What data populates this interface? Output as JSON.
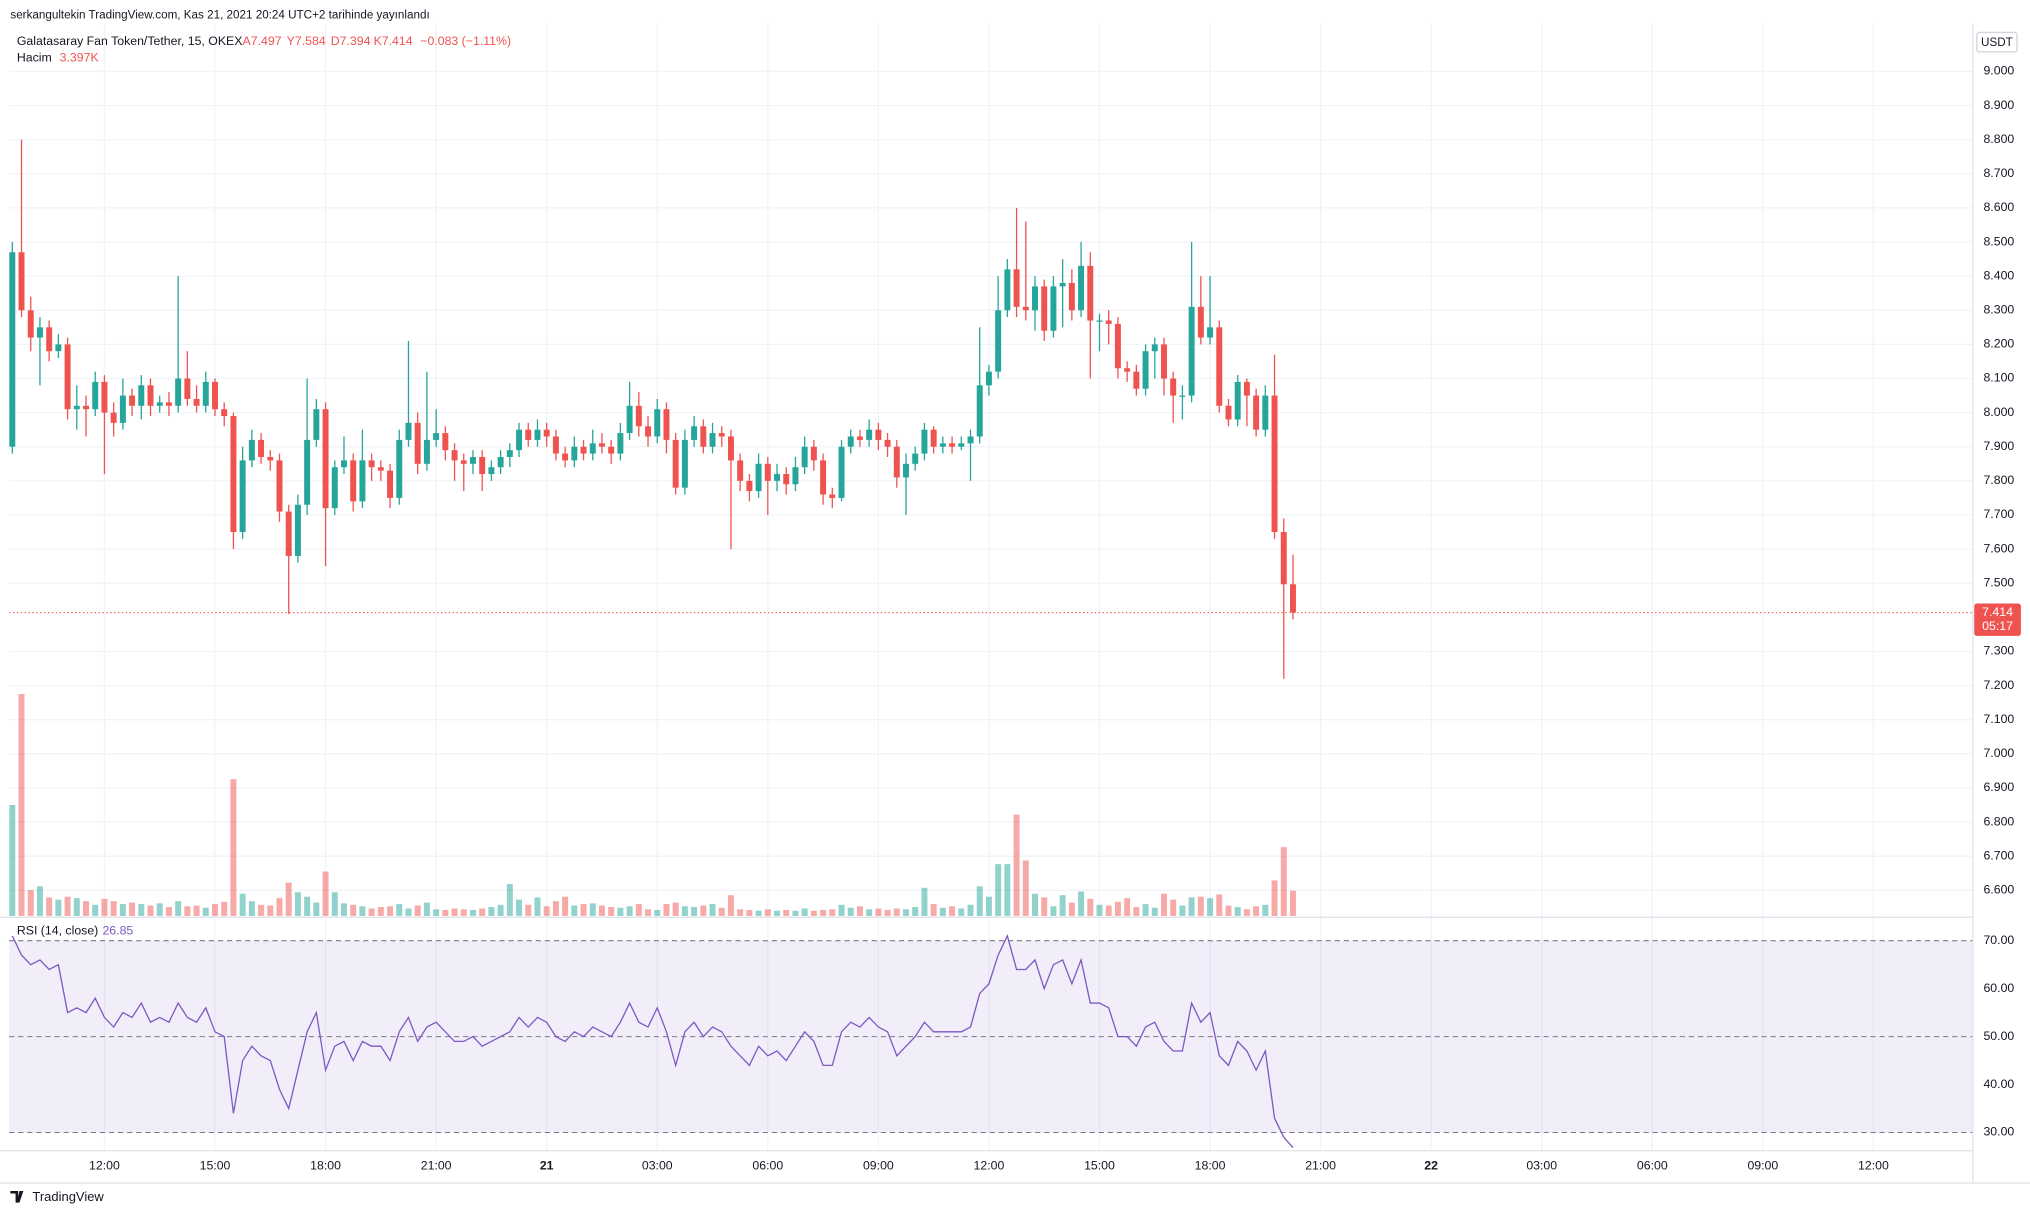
{
  "chart_data": {
    "type": "candlestick",
    "published": "serkangultekin TradingView.com, Kas 21, 2021 20:24 UTC+2 tarihinde yayınlandı",
    "legend": {
      "symbol": "Galatasaray Fan Token/Tether, 15, OKEX",
      "open": "A7.497",
      "high": "Y7.584",
      "low": "D7.394",
      "close": "K7.414",
      "change": "−0.083 (−1.11%)"
    },
    "volume_title": "Hacim",
    "volume_value": "3.397K",
    "rsi_title": "RSI (14, close)",
    "rsi_value": "26.85",
    "currency": "USDT",
    "brand": "TradingView",
    "up_color": "#26a69a",
    "down_color": "#ef5350",
    "rsi_color": "#7e57c2",
    "grid": true,
    "candles": [
      [
        7.9,
        8.5,
        7.88,
        8.47
      ],
      [
        8.47,
        8.8,
        8.28,
        8.3
      ],
      [
        8.3,
        8.34,
        8.18,
        8.22
      ],
      [
        8.22,
        8.28,
        8.08,
        8.25
      ],
      [
        8.25,
        8.27,
        8.15,
        8.18
      ],
      [
        8.18,
        8.23,
        8.16,
        8.2
      ],
      [
        8.2,
        8.22,
        7.98,
        8.01
      ],
      [
        8.01,
        8.08,
        7.95,
        8.02
      ],
      [
        8.02,
        8.05,
        7.93,
        8.01
      ],
      [
        8.01,
        8.12,
        7.99,
        8.09
      ],
      [
        8.09,
        8.11,
        7.82,
        8.0
      ],
      [
        8.0,
        8.03,
        7.93,
        7.97
      ],
      [
        7.97,
        8.1,
        7.95,
        8.05
      ],
      [
        8.05,
        8.07,
        7.99,
        8.02
      ],
      [
        8.02,
        8.11,
        7.98,
        8.08
      ],
      [
        8.08,
        8.1,
        7.99,
        8.02
      ],
      [
        8.02,
        8.05,
        8.0,
        8.03
      ],
      [
        8.03,
        8.06,
        7.99,
        8.02
      ],
      [
        8.02,
        8.4,
        8.0,
        8.1
      ],
      [
        8.1,
        8.18,
        8.02,
        8.04
      ],
      [
        8.04,
        8.08,
        8.0,
        8.02
      ],
      [
        8.02,
        8.12,
        8.0,
        8.09
      ],
      [
        8.09,
        8.1,
        7.99,
        8.01
      ],
      [
        8.01,
        8.03,
        7.96,
        7.99
      ],
      [
        7.99,
        8.0,
        7.6,
        7.65
      ],
      [
        7.65,
        7.9,
        7.63,
        7.86
      ],
      [
        7.86,
        7.95,
        7.84,
        7.92
      ],
      [
        7.92,
        7.94,
        7.85,
        7.87
      ],
      [
        7.87,
        7.89,
        7.83,
        7.86
      ],
      [
        7.86,
        7.88,
        7.68,
        7.71
      ],
      [
        7.71,
        7.73,
        7.41,
        7.58
      ],
      [
        7.58,
        7.76,
        7.56,
        7.73
      ],
      [
        7.73,
        8.1,
        7.7,
        7.92
      ],
      [
        7.92,
        8.04,
        7.9,
        8.01
      ],
      [
        8.01,
        8.03,
        7.55,
        7.72
      ],
      [
        7.72,
        7.86,
        7.7,
        7.84
      ],
      [
        7.84,
        7.93,
        7.82,
        7.86
      ],
      [
        7.86,
        7.88,
        7.71,
        7.74
      ],
      [
        7.74,
        7.95,
        7.72,
        7.86
      ],
      [
        7.86,
        7.88,
        7.8,
        7.84
      ],
      [
        7.84,
        7.86,
        7.8,
        7.83
      ],
      [
        7.83,
        7.85,
        7.72,
        7.75
      ],
      [
        7.75,
        7.95,
        7.73,
        7.92
      ],
      [
        7.92,
        8.21,
        7.9,
        7.97
      ],
      [
        7.97,
        8.0,
        7.82,
        7.85
      ],
      [
        7.85,
        8.12,
        7.83,
        7.92
      ],
      [
        7.92,
        8.01,
        7.9,
        7.94
      ],
      [
        7.94,
        7.96,
        7.86,
        7.89
      ],
      [
        7.89,
        7.91,
        7.8,
        7.86
      ],
      [
        7.86,
        7.88,
        7.77,
        7.85
      ],
      [
        7.85,
        7.89,
        7.82,
        7.87
      ],
      [
        7.87,
        7.89,
        7.77,
        7.82
      ],
      [
        7.82,
        7.86,
        7.8,
        7.84
      ],
      [
        7.84,
        7.89,
        7.82,
        7.87
      ],
      [
        7.87,
        7.91,
        7.84,
        7.89
      ],
      [
        7.89,
        7.97,
        7.87,
        7.95
      ],
      [
        7.95,
        7.97,
        7.9,
        7.92
      ],
      [
        7.92,
        7.98,
        7.9,
        7.95
      ],
      [
        7.95,
        7.97,
        7.9,
        7.93
      ],
      [
        7.93,
        7.95,
        7.86,
        7.88
      ],
      [
        7.88,
        7.9,
        7.84,
        7.86
      ],
      [
        7.86,
        7.93,
        7.84,
        7.9
      ],
      [
        7.9,
        7.92,
        7.86,
        7.88
      ],
      [
        7.88,
        7.95,
        7.86,
        7.91
      ],
      [
        7.91,
        7.94,
        7.88,
        7.9
      ],
      [
        7.9,
        7.92,
        7.85,
        7.88
      ],
      [
        7.88,
        7.97,
        7.86,
        7.94
      ],
      [
        7.94,
        8.09,
        7.92,
        8.02
      ],
      [
        8.02,
        8.06,
        7.93,
        7.96
      ],
      [
        7.96,
        7.99,
        7.9,
        7.93
      ],
      [
        7.93,
        8.04,
        7.91,
        8.01
      ],
      [
        8.01,
        8.03,
        7.88,
        7.92
      ],
      [
        7.92,
        7.94,
        7.76,
        7.78
      ],
      [
        7.78,
        7.95,
        7.76,
        7.92
      ],
      [
        7.92,
        7.99,
        7.9,
        7.96
      ],
      [
        7.96,
        7.98,
        7.88,
        7.9
      ],
      [
        7.9,
        7.97,
        7.88,
        7.94
      ],
      [
        7.94,
        7.96,
        7.9,
        7.93
      ],
      [
        7.93,
        7.95,
        7.6,
        7.86
      ],
      [
        7.86,
        7.88,
        7.77,
        7.8
      ],
      [
        7.8,
        7.82,
        7.74,
        7.77
      ],
      [
        7.77,
        7.88,
        7.75,
        7.85
      ],
      [
        7.85,
        7.87,
        7.7,
        7.8
      ],
      [
        7.8,
        7.85,
        7.77,
        7.82
      ],
      [
        7.82,
        7.84,
        7.76,
        7.79
      ],
      [
        7.79,
        7.87,
        7.77,
        7.84
      ],
      [
        7.84,
        7.93,
        7.82,
        7.9
      ],
      [
        7.9,
        7.92,
        7.83,
        7.86
      ],
      [
        7.86,
        7.88,
        7.73,
        7.76
      ],
      [
        7.76,
        7.78,
        7.72,
        7.75
      ],
      [
        7.75,
        7.92,
        7.74,
        7.9
      ],
      [
        7.9,
        7.95,
        7.88,
        7.93
      ],
      [
        7.93,
        7.95,
        7.9,
        7.92
      ],
      [
        7.92,
        7.98,
        7.9,
        7.95
      ],
      [
        7.95,
        7.97,
        7.89,
        7.92
      ],
      [
        7.92,
        7.94,
        7.87,
        7.9
      ],
      [
        7.9,
        7.92,
        7.78,
        7.81
      ],
      [
        7.81,
        7.88,
        7.7,
        7.85
      ],
      [
        7.85,
        7.9,
        7.83,
        7.88
      ],
      [
        7.88,
        7.97,
        7.86,
        7.95
      ],
      [
        7.95,
        7.96,
        7.88,
        7.9
      ],
      [
        7.9,
        7.93,
        7.88,
        7.91
      ],
      [
        7.91,
        7.93,
        7.88,
        7.9
      ],
      [
        7.9,
        7.93,
        7.89,
        7.91
      ],
      [
        7.91,
        7.95,
        7.8,
        7.93
      ],
      [
        7.93,
        8.25,
        7.91,
        8.08
      ],
      [
        8.08,
        8.14,
        8.05,
        8.12
      ],
      [
        8.12,
        8.4,
        8.1,
        8.3
      ],
      [
        8.3,
        8.45,
        8.28,
        8.42
      ],
      [
        8.42,
        8.6,
        8.28,
        8.31
      ],
      [
        8.31,
        8.56,
        8.27,
        8.3
      ],
      [
        8.3,
        8.4,
        8.24,
        8.37
      ],
      [
        8.37,
        8.39,
        8.21,
        8.24
      ],
      [
        8.24,
        8.4,
        8.22,
        8.37
      ],
      [
        8.37,
        8.45,
        8.25,
        8.38
      ],
      [
        8.38,
        8.42,
        8.27,
        8.3
      ],
      [
        8.3,
        8.5,
        8.28,
        8.43
      ],
      [
        8.43,
        8.47,
        8.1,
        8.27
      ],
      [
        8.27,
        8.29,
        8.18,
        8.27
      ],
      [
        8.27,
        8.3,
        8.2,
        8.26
      ],
      [
        8.26,
        8.28,
        8.1,
        8.13
      ],
      [
        8.13,
        8.15,
        8.09,
        8.12
      ],
      [
        8.12,
        8.14,
        8.05,
        8.07
      ],
      [
        8.07,
        8.2,
        8.05,
        8.18
      ],
      [
        8.18,
        8.22,
        8.1,
        8.2
      ],
      [
        8.2,
        8.22,
        8.05,
        8.1
      ],
      [
        8.1,
        8.12,
        7.97,
        8.05
      ],
      [
        8.05,
        8.08,
        7.98,
        8.05
      ],
      [
        8.05,
        8.5,
        8.03,
        8.31
      ],
      [
        8.31,
        8.4,
        8.2,
        8.22
      ],
      [
        8.22,
        8.4,
        8.2,
        8.25
      ],
      [
        8.25,
        8.27,
        8.0,
        8.02
      ],
      [
        8.02,
        8.04,
        7.96,
        7.98
      ],
      [
        7.98,
        8.11,
        7.96,
        8.09
      ],
      [
        8.09,
        8.1,
        7.96,
        8.05
      ],
      [
        8.05,
        8.07,
        7.93,
        7.95
      ],
      [
        7.95,
        8.08,
        7.93,
        8.05
      ],
      [
        8.05,
        8.17,
        7.63,
        7.65
      ],
      [
        7.65,
        7.69,
        7.22,
        7.497
      ],
      [
        7.497,
        7.584,
        7.394,
        7.414
      ]
    ],
    "volume": [
      15,
      30,
      3.5,
      4.0,
      2.5,
      2.2,
      2.6,
      2.4,
      2.0,
      1.5,
      2.3,
      2.0,
      1.6,
      1.8,
      1.6,
      1.4,
      1.7,
      1.2,
      2.0,
      1.3,
      1.4,
      1.1,
      1.6,
      1.9,
      18.5,
      3.0,
      2.0,
      1.5,
      1.4,
      2.4,
      4.5,
      3.2,
      2.6,
      1.8,
      6.0,
      3.2,
      1.7,
      1.5,
      1.3,
      1.0,
      1.2,
      1.3,
      1.6,
      1.0,
      1.4,
      1.8,
      0.9,
      0.8,
      1.0,
      0.9,
      0.8,
      1.0,
      1.2,
      1.5,
      4.3,
      2.2,
      1.5,
      2.5,
      1.3,
      2.0,
      2.6,
      1.4,
      1.6,
      1.7,
      1.4,
      1.2,
      1.1,
      1.3,
      1.6,
      0.9,
      0.8,
      1.6,
      1.8,
      1.3,
      1.2,
      1.4,
      1.6,
      1.1,
      2.8,
      0.9,
      0.8,
      0.7,
      0.9,
      0.7,
      0.8,
      0.7,
      1.0,
      0.7,
      0.8,
      0.9,
      1.5,
      1.1,
      1.3,
      0.9,
      1.0,
      0.8,
      1.0,
      0.9,
      1.2,
      3.8,
      1.6,
      1.1,
      1.3,
      1.0,
      1.5,
      4.0,
      2.6,
      7.0,
      7.0,
      13.7,
      7.5,
      3.0,
      2.5,
      1.3,
      2.8,
      1.8,
      3.3,
      2.3,
      1.5,
      1.4,
      1.9,
      2.4,
      1.2,
      1.6,
      1.1,
      3.0,
      2.2,
      1.4,
      2.5,
      2.6,
      2.4,
      2.9,
      1.4,
      1.2,
      0.9,
      1.3,
      1.5,
      4.8,
      9.3,
      3.397
    ],
    "rsi": [
      71,
      67,
      65,
      66,
      64,
      65,
      55,
      56,
      55,
      58,
      54,
      52,
      55,
      54,
      57,
      53,
      54,
      53,
      57,
      54,
      53,
      56,
      51,
      50,
      34,
      45,
      48,
      46,
      45,
      39,
      35,
      43,
      51,
      55,
      43,
      48,
      49,
      45,
      49,
      48,
      48,
      45,
      51,
      54,
      49,
      52,
      53,
      51,
      49,
      49,
      50,
      48,
      49,
      50,
      51,
      54,
      52,
      54,
      53,
      50,
      49,
      51,
      50,
      52,
      51,
      50,
      53,
      57,
      53,
      52,
      56,
      51,
      44,
      51,
      53,
      50,
      52,
      51,
      48,
      46,
      44,
      48,
      46,
      47,
      45,
      48,
      51,
      49,
      44,
      44,
      51,
      53,
      52,
      54,
      52,
      51,
      46,
      48,
      50,
      53,
      51,
      51,
      51,
      51,
      52,
      59,
      61,
      67,
      71,
      64,
      64,
      66,
      60,
      65,
      66,
      61,
      66,
      57,
      57,
      56,
      50,
      50,
      48,
      52,
      53,
      49,
      47,
      47,
      57,
      53,
      55,
      46,
      44,
      49,
      47,
      43,
      47,
      33,
      29,
      26.85
    ],
    "xlim": [
      -0.35,
      212.8
    ],
    "xticks": [
      {
        "value": 10,
        "label": "12:00"
      },
      {
        "value": 22,
        "label": "15:00"
      },
      {
        "value": 34,
        "label": "18:00"
      },
      {
        "value": 46,
        "label": "21:00"
      },
      {
        "value": 58,
        "label": "21"
      },
      {
        "value": 70,
        "label": "03:00"
      },
      {
        "value": 82,
        "label": "06:00"
      },
      {
        "value": 94,
        "label": "09:00"
      },
      {
        "value": 106,
        "label": "12:00"
      },
      {
        "value": 118,
        "label": "15:00"
      },
      {
        "value": 130,
        "label": "18:00"
      },
      {
        "value": 142,
        "label": "21:00"
      },
      {
        "value": 154,
        "label": "22"
      },
      {
        "value": 166,
        "label": "03:00"
      },
      {
        "value": 178,
        "label": "06:00"
      },
      {
        "value": 190,
        "label": "09:00"
      },
      {
        "value": 202,
        "label": "12:00"
      }
    ],
    "ylim": [
      6.525,
      9.099
    ],
    "yticks": [
      {
        "value": 9.0,
        "label": "9.000"
      },
      {
        "value": 8.9,
        "label": "8.900"
      },
      {
        "value": 8.8,
        "label": "8.800"
      },
      {
        "value": 8.7,
        "label": "8.700"
      },
      {
        "value": 8.6,
        "label": "8.600"
      },
      {
        "value": 8.5,
        "label": "8.500"
      },
      {
        "value": 8.4,
        "label": "8.400"
      },
      {
        "value": 8.3,
        "label": "8.300"
      },
      {
        "value": 8.2,
        "label": "8.200"
      },
      {
        "value": 8.1,
        "label": "8.100"
      },
      {
        "value": 8.0,
        "label": "8.000"
      },
      {
        "value": 7.9,
        "label": "7.900"
      },
      {
        "value": 7.8,
        "label": "7.800"
      },
      {
        "value": 7.7,
        "label": "7.700"
      },
      {
        "value": 7.6,
        "label": "7.600"
      },
      {
        "value": 7.5,
        "label": "7.500"
      },
      {
        "value": 7.3,
        "label": "7.300"
      },
      {
        "value": 7.2,
        "label": "7.200"
      },
      {
        "value": 7.1,
        "label": "7.100"
      },
      {
        "value": 7.0,
        "label": "7.000"
      },
      {
        "value": 6.9,
        "label": "6.900"
      },
      {
        "value": 6.8,
        "label": "6.800"
      },
      {
        "value": 6.7,
        "label": "6.700"
      },
      {
        "value": 6.6,
        "label": "6.600"
      }
    ],
    "last_price": 7.414,
    "countdown": "05:17",
    "rsi_lim": [
      26.2,
      74.9
    ],
    "rsi_ticks": [
      {
        "value": 70,
        "label": "70.00"
      },
      {
        "value": 60,
        "label": "60.00"
      },
      {
        "value": 50,
        "label": "50.00"
      },
      {
        "value": 40,
        "label": "40.00"
      },
      {
        "value": 30,
        "label": "30.00"
      }
    ],
    "rsi_levels": [
      30,
      50,
      70
    ]
  }
}
